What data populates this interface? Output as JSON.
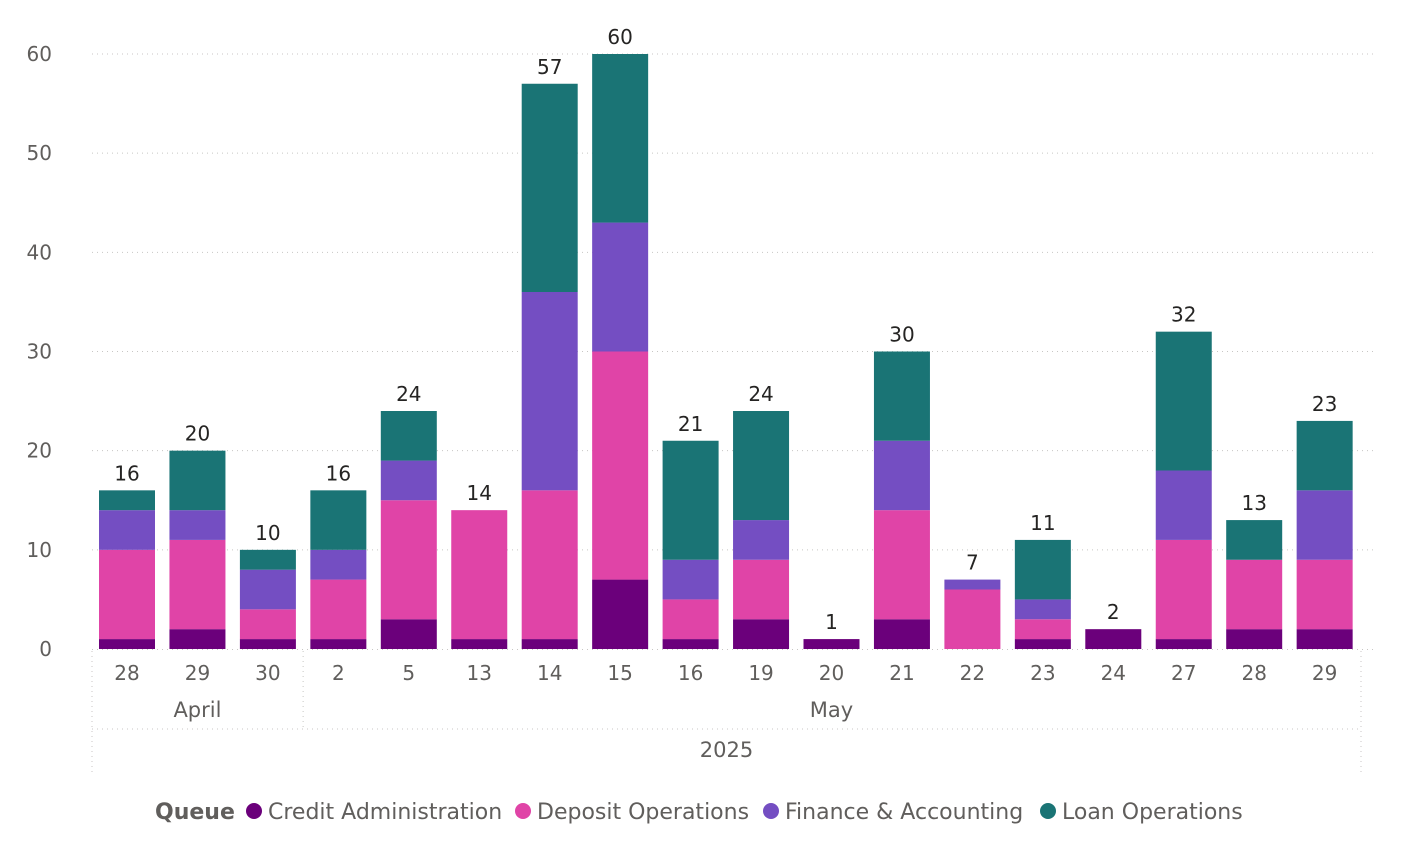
{
  "chart_data": {
    "type": "bar",
    "stacked": true,
    "categories": [
      "28",
      "29",
      "30",
      "2",
      "5",
      "13",
      "14",
      "15",
      "16",
      "19",
      "20",
      "21",
      "22",
      "23",
      "24",
      "27",
      "28",
      "29"
    ],
    "month_groups": [
      {
        "label": "April",
        "count": 3
      },
      {
        "label": "May",
        "count": 15
      }
    ],
    "year_label": "2025",
    "series": [
      {
        "name": "Credit Administration",
        "color": "#6b007b",
        "values": [
          1,
          2,
          1,
          1,
          3,
          1,
          1,
          7,
          1,
          3,
          1,
          3,
          0,
          1,
          2,
          1,
          2,
          2
        ]
      },
      {
        "name": "Deposit Operations",
        "color": "#e044a7",
        "values": [
          9,
          9,
          3,
          6,
          12,
          13,
          15,
          23,
          4,
          6,
          0,
          11,
          6,
          2,
          0,
          10,
          7,
          7
        ]
      },
      {
        "name": "Finance & Accounting",
        "color": "#744ec2",
        "values": [
          4,
          3,
          4,
          3,
          4,
          0,
          20,
          13,
          4,
          4,
          0,
          7,
          1,
          2,
          0,
          7,
          0,
          7
        ]
      },
      {
        "name": "Loan Operations",
        "color": "#1a7475",
        "values": [
          2,
          6,
          2,
          6,
          5,
          0,
          21,
          17,
          12,
          11,
          0,
          9,
          0,
          6,
          0,
          14,
          4,
          7
        ]
      }
    ],
    "totals": [
      16,
      20,
      10,
      16,
      24,
      14,
      57,
      60,
      21,
      24,
      1,
      30,
      7,
      11,
      2,
      32,
      13,
      23
    ],
    "y_ticks": [
      0,
      10,
      20,
      30,
      40,
      50,
      60
    ],
    "ylim": [
      0,
      60
    ],
    "grid": true,
    "title": "",
    "xlabel": "",
    "ylabel": "",
    "legend": {
      "title": "Queue",
      "position": "bottom-center"
    }
  }
}
